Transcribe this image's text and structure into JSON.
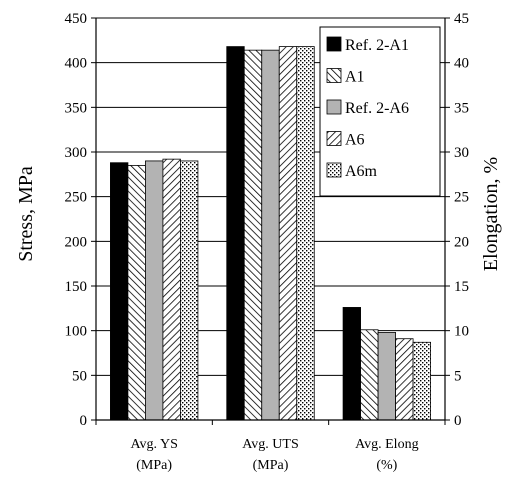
{
  "chart_data": {
    "type": "bar",
    "categories": [
      [
        "Avg. YS",
        "(MPa)"
      ],
      [
        "Avg. UTS",
        "(MPa)"
      ],
      [
        "Avg. Elong",
        "(%)"
      ]
    ],
    "series": [
      {
        "name": "Ref. 2-A1",
        "values": [
          288,
          418,
          12.6
        ],
        "pattern": "solid-black"
      },
      {
        "name": "A1",
        "values": [
          285,
          414,
          10.1
        ],
        "pattern": "hatch-back"
      },
      {
        "name": "Ref. 2-A6",
        "values": [
          290,
          414,
          9.8
        ],
        "pattern": "solid-gray"
      },
      {
        "name": "A6",
        "values": [
          292,
          418,
          9.1
        ],
        "pattern": "hatch-forward"
      },
      {
        "name": "A6m",
        "values": [
          290,
          418,
          8.7
        ],
        "pattern": "dots"
      }
    ],
    "value_axis": [
      "left",
      "left",
      "right"
    ],
    "ylabel": "Stress, MPa",
    "ylabel_right": "Elongation, %",
    "ylim": [
      0,
      450
    ],
    "ylim_right": [
      0,
      45
    ],
    "yticks": [
      0,
      50,
      100,
      150,
      200,
      250,
      300,
      350,
      400,
      450
    ],
    "yticks_right": [
      0,
      5,
      10,
      15,
      20,
      25,
      30,
      35,
      40,
      45
    ],
    "grid": true,
    "legend_position": "top-right",
    "colors": {
      "bar_edge": "#000000",
      "solid_black": "#000000",
      "solid_gray": "#b3b3b3",
      "hatch": "#000000",
      "grid": "#000000"
    }
  }
}
